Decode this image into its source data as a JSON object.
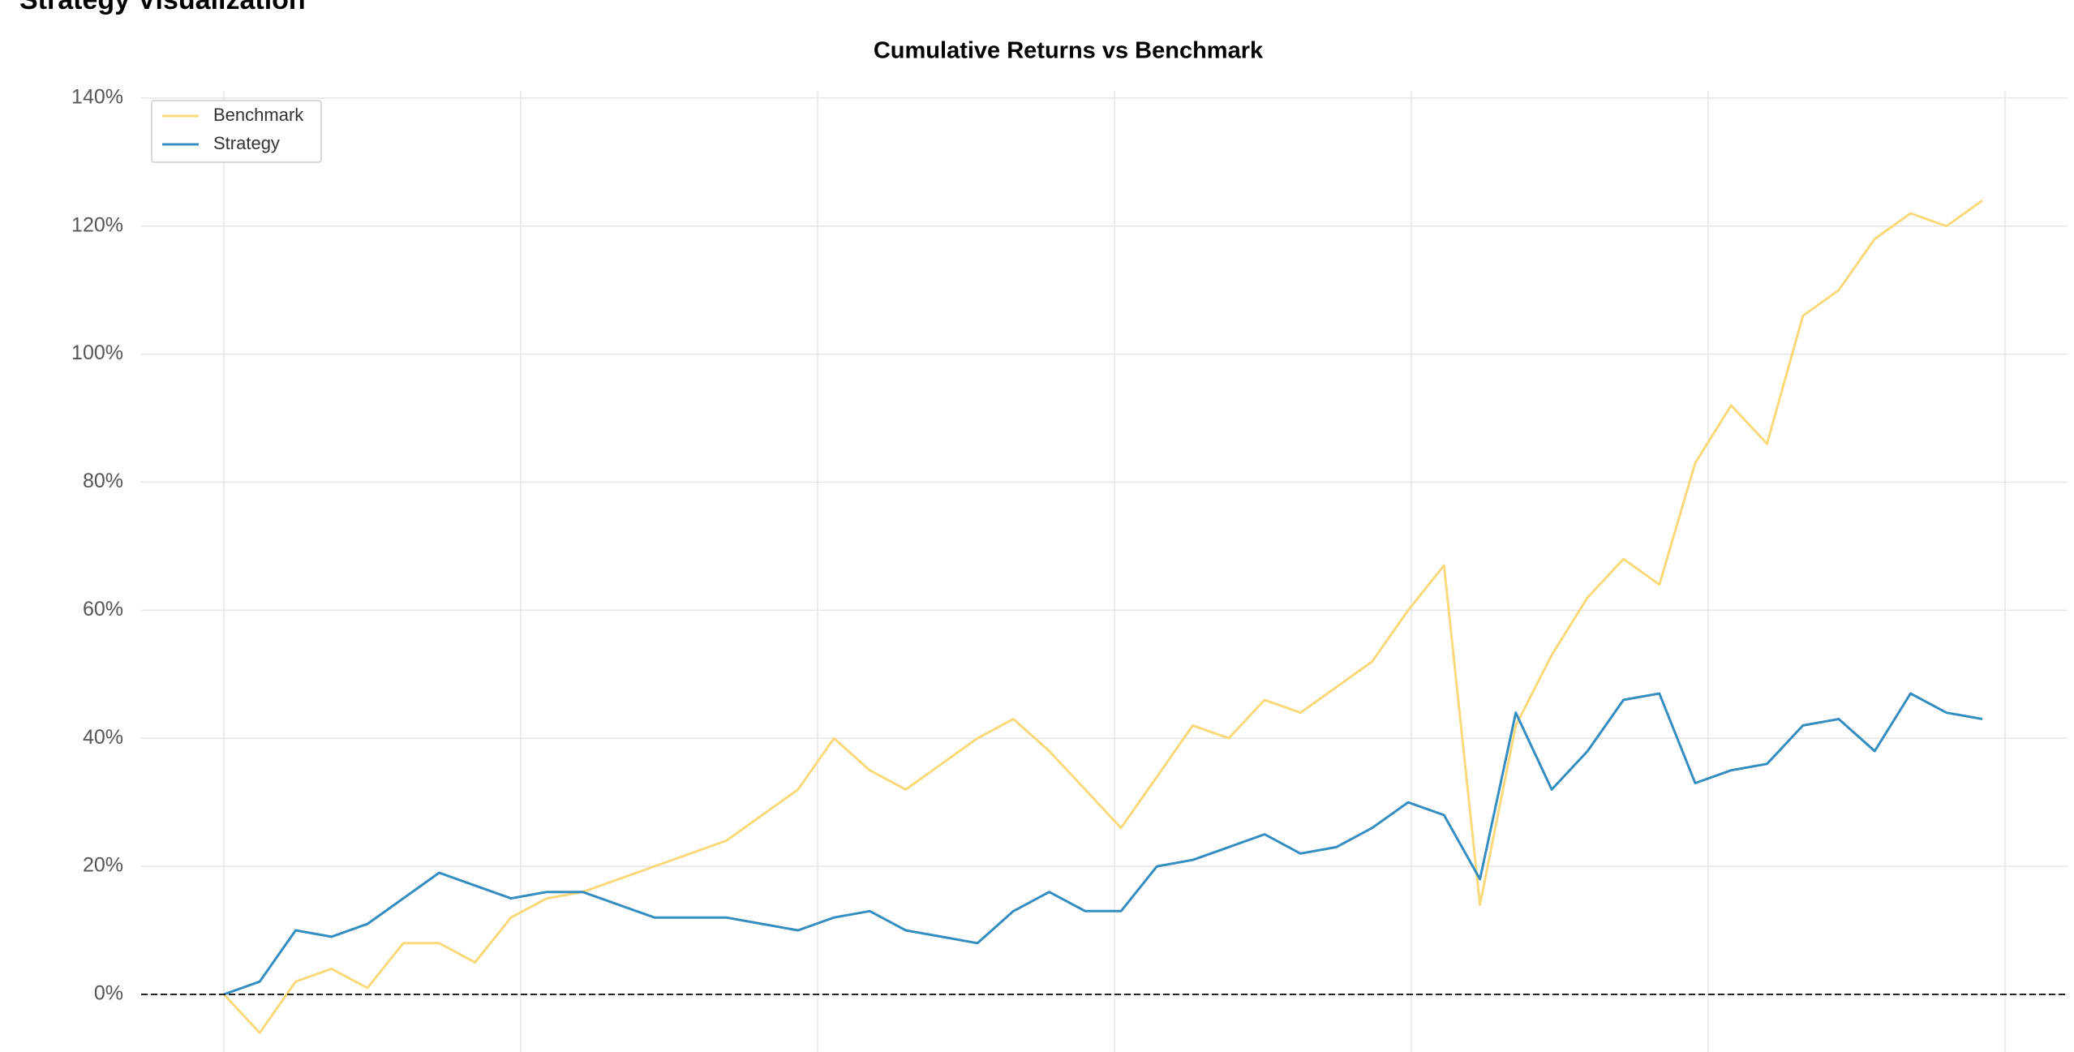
{
  "header": {
    "title": "Strategy Visualization"
  },
  "chart_data": {
    "type": "line",
    "title": "Cumulative Returns vs Benchmark",
    "series": [
      {
        "name": "Benchmark",
        "color": "#fad97a",
        "values": [
          0,
          -6,
          2,
          4,
          1,
          8,
          8,
          5,
          12,
          15,
          16,
          18,
          20,
          22,
          24,
          28,
          32,
          40,
          35,
          32,
          36,
          40,
          43,
          38,
          32,
          26,
          34,
          42,
          40,
          46,
          44,
          48,
          52,
          60,
          67,
          14,
          42,
          53,
          62,
          68,
          64,
          83,
          92,
          86,
          106,
          110,
          118,
          122,
          120,
          124
        ]
      },
      {
        "name": "Strategy",
        "color": "#348dc1",
        "values": [
          0,
          2,
          10,
          9,
          11,
          15,
          19,
          17,
          15,
          16,
          16,
          14,
          12,
          12,
          12,
          11,
          10,
          12,
          13,
          10,
          9,
          8,
          13,
          16,
          13,
          13,
          20,
          21,
          23,
          25,
          22,
          23,
          26,
          30,
          28,
          18,
          44,
          32,
          38,
          46,
          47,
          33,
          35,
          36,
          42,
          43,
          38,
          47,
          44,
          43
        ]
      }
    ],
    "ylim": [
      -9,
      141
    ],
    "yticks": [
      {
        "value": 0,
        "label": "0%"
      },
      {
        "value": 20,
        "label": "20%"
      },
      {
        "value": 40,
        "label": "40%"
      },
      {
        "value": 60,
        "label": "60%"
      },
      {
        "value": 80,
        "label": "80%"
      },
      {
        "value": 100,
        "label": "100%"
      },
      {
        "value": 120,
        "label": "120%"
      },
      {
        "value": 140,
        "label": "140%"
      }
    ],
    "grid": true,
    "legend": "upper left"
  }
}
